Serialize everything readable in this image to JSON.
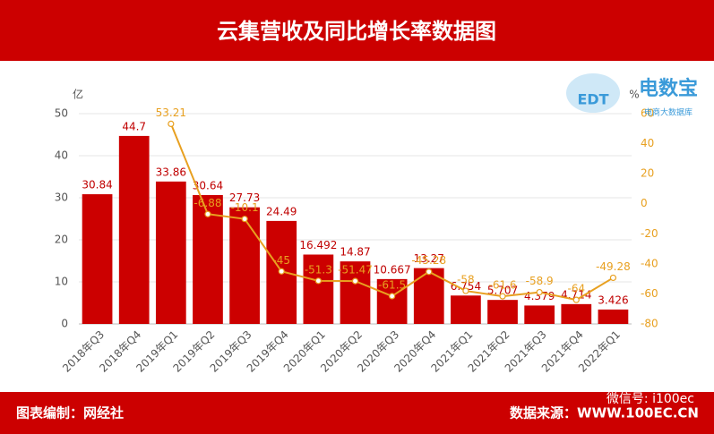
{
  "chart_data": {
    "type": "bar",
    "title": "云集营收及同比增长率数据图",
    "y_label": "亿",
    "y2_label": "%",
    "categories": [
      "2018年Q3",
      "2018年Q4",
      "2019年Q1",
      "2019年Q2",
      "2019年Q3",
      "2019年Q4",
      "2020年Q1",
      "2020年Q2",
      "2020年Q3",
      "2020年Q4",
      "2021年Q1",
      "2021年Q2",
      "2021年Q3",
      "2021年Q4",
      "2022年Q1"
    ],
    "series": [
      {
        "type": "bar",
        "color": "#cc0000",
        "values": [
          30.84,
          44.7,
          33.86,
          30.64,
          27.73,
          24.49,
          16.492,
          14.87,
          10.667,
          13.27,
          6.754,
          5.707,
          4.379,
          4.714,
          3.426
        ]
      },
      {
        "type": "line",
        "axis": "y2",
        "color": "#e8a020",
        "values": [
          null,
          null,
          53.21,
          -6.88,
          -10.1,
          -45,
          -51.3,
          -51.47,
          -61.5,
          -45.28,
          -58,
          -61.6,
          -58.9,
          -64,
          -49.28
        ]
      }
    ],
    "ylim": [
      0,
      50
    ],
    "yticks": [
      0,
      10,
      20,
      30,
      40,
      50
    ],
    "y2lim": [
      -80,
      60
    ],
    "y2ticks": [
      -80,
      -60,
      -40,
      -20,
      0,
      20,
      40,
      60
    ],
    "grid": true
  },
  "logo": {
    "mark": "EDT",
    "name": "电数宝",
    "subtitle": "电商大数据库"
  },
  "footer": {
    "credit": "图表编制：网经社",
    "source": "数据来源：WWW.100EC.CN",
    "wechat": "微信号: i100ec"
  }
}
